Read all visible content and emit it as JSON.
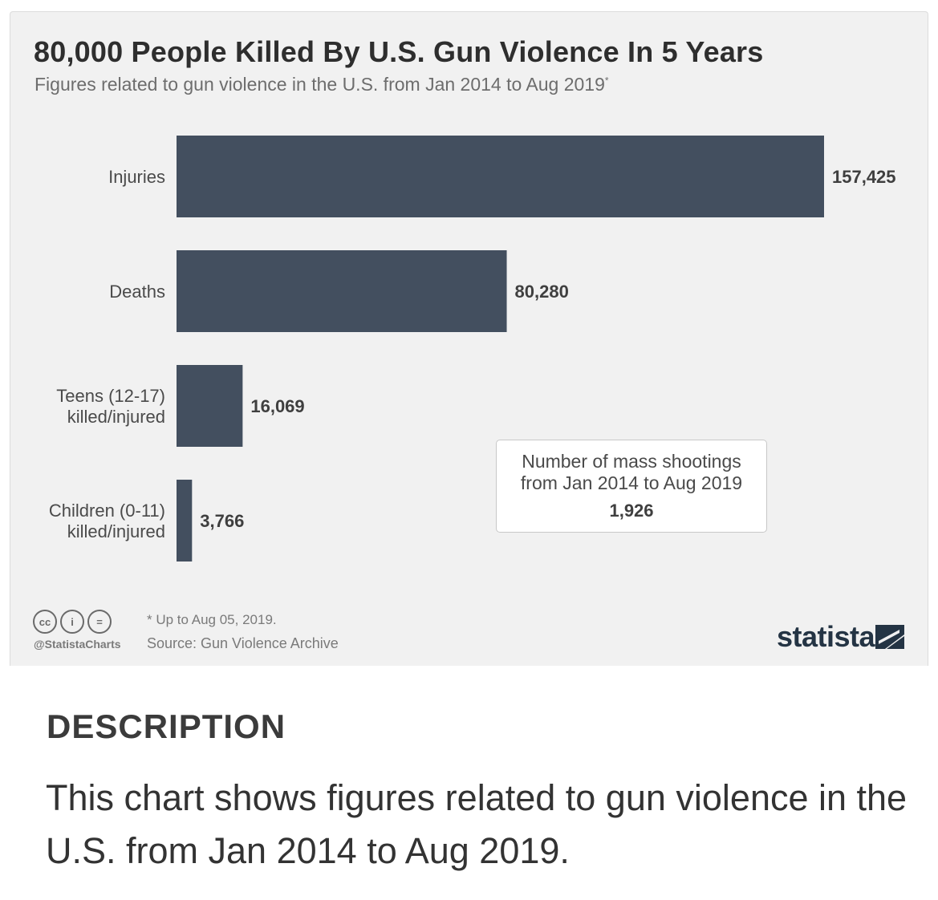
{
  "chart_data": {
    "type": "bar",
    "orientation": "horizontal",
    "title": "80,000 People Killed By U.S. Gun Violence In 5 Years",
    "subtitle": "Figures related to gun violence in the U.S. from Jan 2014 to Aug 2019",
    "subtitle_marker": "*",
    "categories": [
      [
        "Injuries"
      ],
      [
        "Deaths"
      ],
      [
        "Teens (12-17)",
        "killed/injured"
      ],
      [
        "Children (0-11)",
        "killed/injured"
      ]
    ],
    "values": [
      157425,
      80280,
      16069,
      3766
    ],
    "value_labels": [
      "157,425",
      "80,280",
      "16,069",
      "3,766"
    ],
    "bar_color": "#434f5f",
    "grid": false,
    "legend": "none"
  },
  "callout": {
    "text_line1": "Number of mass shootings",
    "text_line2": "from Jan 2014 to Aug 2019",
    "value": "1,926"
  },
  "footer": {
    "license_icons": [
      "cc-icon",
      "person-icon",
      "equals-icon"
    ],
    "license_glyphs": [
      "cc",
      "i",
      "="
    ],
    "handle": "@StatistaCharts",
    "footnote": "* Up to Aug 05, 2019.",
    "source": "Source: Gun Violence Archive",
    "brand": "statista"
  },
  "description": {
    "heading": "DESCRIPTION",
    "text": "This chart shows figures related to gun violence in the U.S. from Jan 2014 to Aug 2019."
  }
}
